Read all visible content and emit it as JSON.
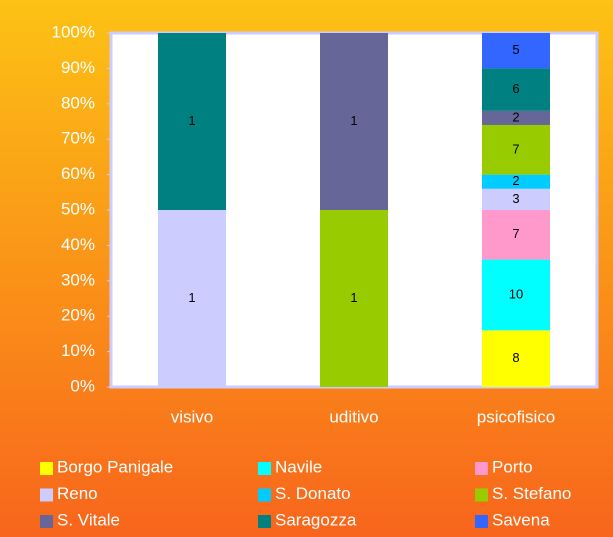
{
  "chart_data": {
    "type": "bar",
    "stacking": "percent",
    "categories": [
      "visivo",
      "uditivo",
      "psicofisico"
    ],
    "series": [
      {
        "name": "Borgo Panigale",
        "color": "#ffff00",
        "values": [
          null,
          null,
          8
        ]
      },
      {
        "name": "Navile",
        "color": "#00ffff",
        "values": [
          null,
          null,
          10
        ]
      },
      {
        "name": "Porto",
        "color": "#ff99cc",
        "values": [
          null,
          null,
          7
        ]
      },
      {
        "name": "Reno",
        "color": "#ccccff",
        "values": [
          1,
          null,
          3
        ]
      },
      {
        "name": "S. Donato",
        "color": "#00ccff",
        "values": [
          null,
          null,
          2
        ]
      },
      {
        "name": "S. Stefano",
        "color": "#99cc00",
        "values": [
          null,
          1,
          7
        ]
      },
      {
        "name": "S. Vitale",
        "color": "#666699",
        "values": [
          null,
          1,
          2
        ]
      },
      {
        "name": "Saragozza",
        "color": "#008080",
        "values": [
          1,
          null,
          6
        ]
      },
      {
        "name": "Savena",
        "color": "#3366ff",
        "values": [
          null,
          null,
          5
        ]
      }
    ],
    "ylim": [
      0,
      100
    ],
    "yticks": [
      {
        "value": 0,
        "label": "0%"
      },
      {
        "value": 10,
        "label": "10%"
      },
      {
        "value": 20,
        "label": "20%"
      },
      {
        "value": 30,
        "label": "30%"
      },
      {
        "value": 40,
        "label": "40%"
      },
      {
        "value": 50,
        "label": "50%"
      },
      {
        "value": 60,
        "label": "60%"
      },
      {
        "value": 70,
        "label": "70%"
      },
      {
        "value": 80,
        "label": "80%"
      },
      {
        "value": 90,
        "label": "90%"
      },
      {
        "value": 100,
        "label": "100%"
      }
    ],
    "grid": false,
    "legend": "bottom"
  }
}
